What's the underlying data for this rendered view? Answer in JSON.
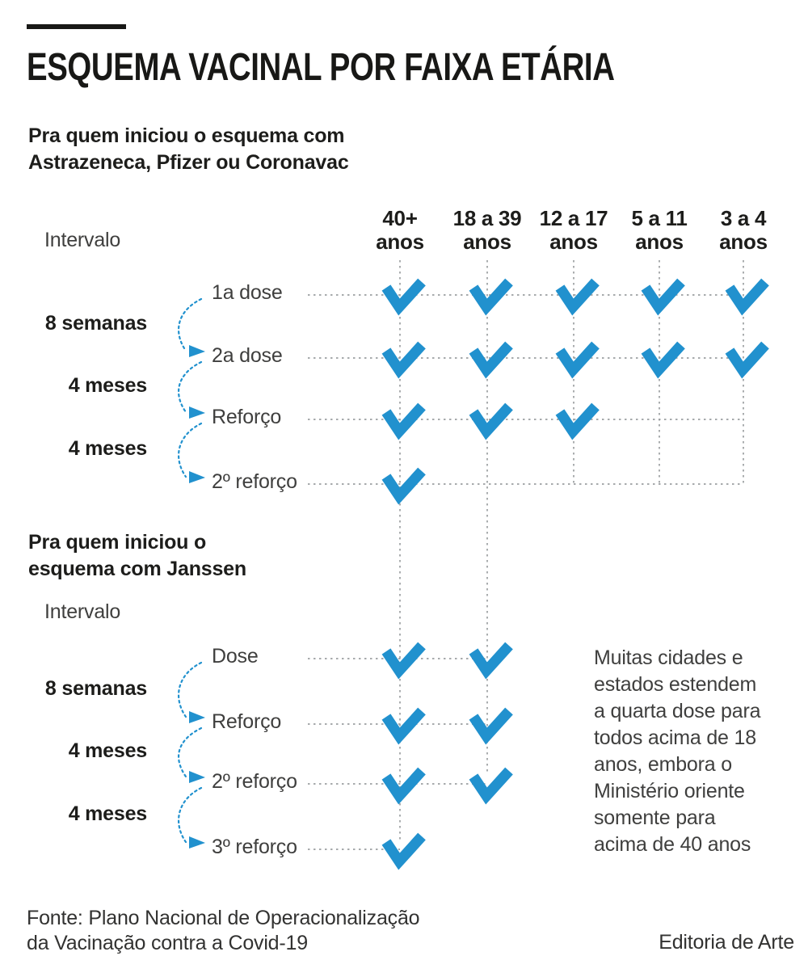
{
  "title": "ESQUEMA VACINAL POR FAIXA ETÁRIA",
  "columns": [
    "40+\nanos",
    "18 a 39\nanos",
    "12 a 17\nanos",
    "5 a 11\nanos",
    "3 a 4\nanos"
  ],
  "sections": [
    {
      "heading": "Pra quem iniciou o esquema com\nAstrazeneca, Pfizer ou Coronavac",
      "intervalo_label": "Intervalo",
      "intervals": [
        "8 semanas",
        "4 meses",
        "4 meses"
      ],
      "rows": [
        {
          "label": "1a dose",
          "checks": [
            true,
            true,
            true,
            true,
            true
          ]
        },
        {
          "label": "2a dose",
          "checks": [
            true,
            true,
            true,
            true,
            true
          ]
        },
        {
          "label": "Reforço",
          "checks": [
            true,
            true,
            true,
            false,
            false
          ]
        },
        {
          "label": "2º reforço",
          "checks": [
            true,
            false,
            false,
            false,
            false
          ]
        }
      ]
    },
    {
      "heading": "Pra quem iniciou o\nesquema com Janssen",
      "intervalo_label": "Intervalo",
      "intervals": [
        "8 semanas",
        "4 meses",
        "4 meses"
      ],
      "rows": [
        {
          "label": "Dose",
          "checks": [
            true,
            true,
            false,
            false,
            false
          ]
        },
        {
          "label": "Reforço",
          "checks": [
            true,
            true,
            false,
            false,
            false
          ]
        },
        {
          "label": "2º reforço",
          "checks": [
            true,
            true,
            false,
            false,
            false
          ]
        },
        {
          "label": "3º reforço",
          "checks": [
            true,
            false,
            false,
            false,
            false
          ]
        }
      ]
    }
  ],
  "note": "Muitas cidades e\nestados estendem\na quarta dose para\ntodos acima de 18\nanos, embora o\nMinistério oriente\nsomente para\nacima de 40 anos",
  "footer": {
    "source": "Fonte: Plano Nacional de Operacionalização\nda Vacinação contra a Covid-19",
    "credit": "Editoria de Arte"
  },
  "colors": {
    "check_blue": "#2191ce",
    "dash_gray": "#9b9fa1",
    "ink": "#1d1d1b",
    "text_gray": "#3f3f3e"
  }
}
